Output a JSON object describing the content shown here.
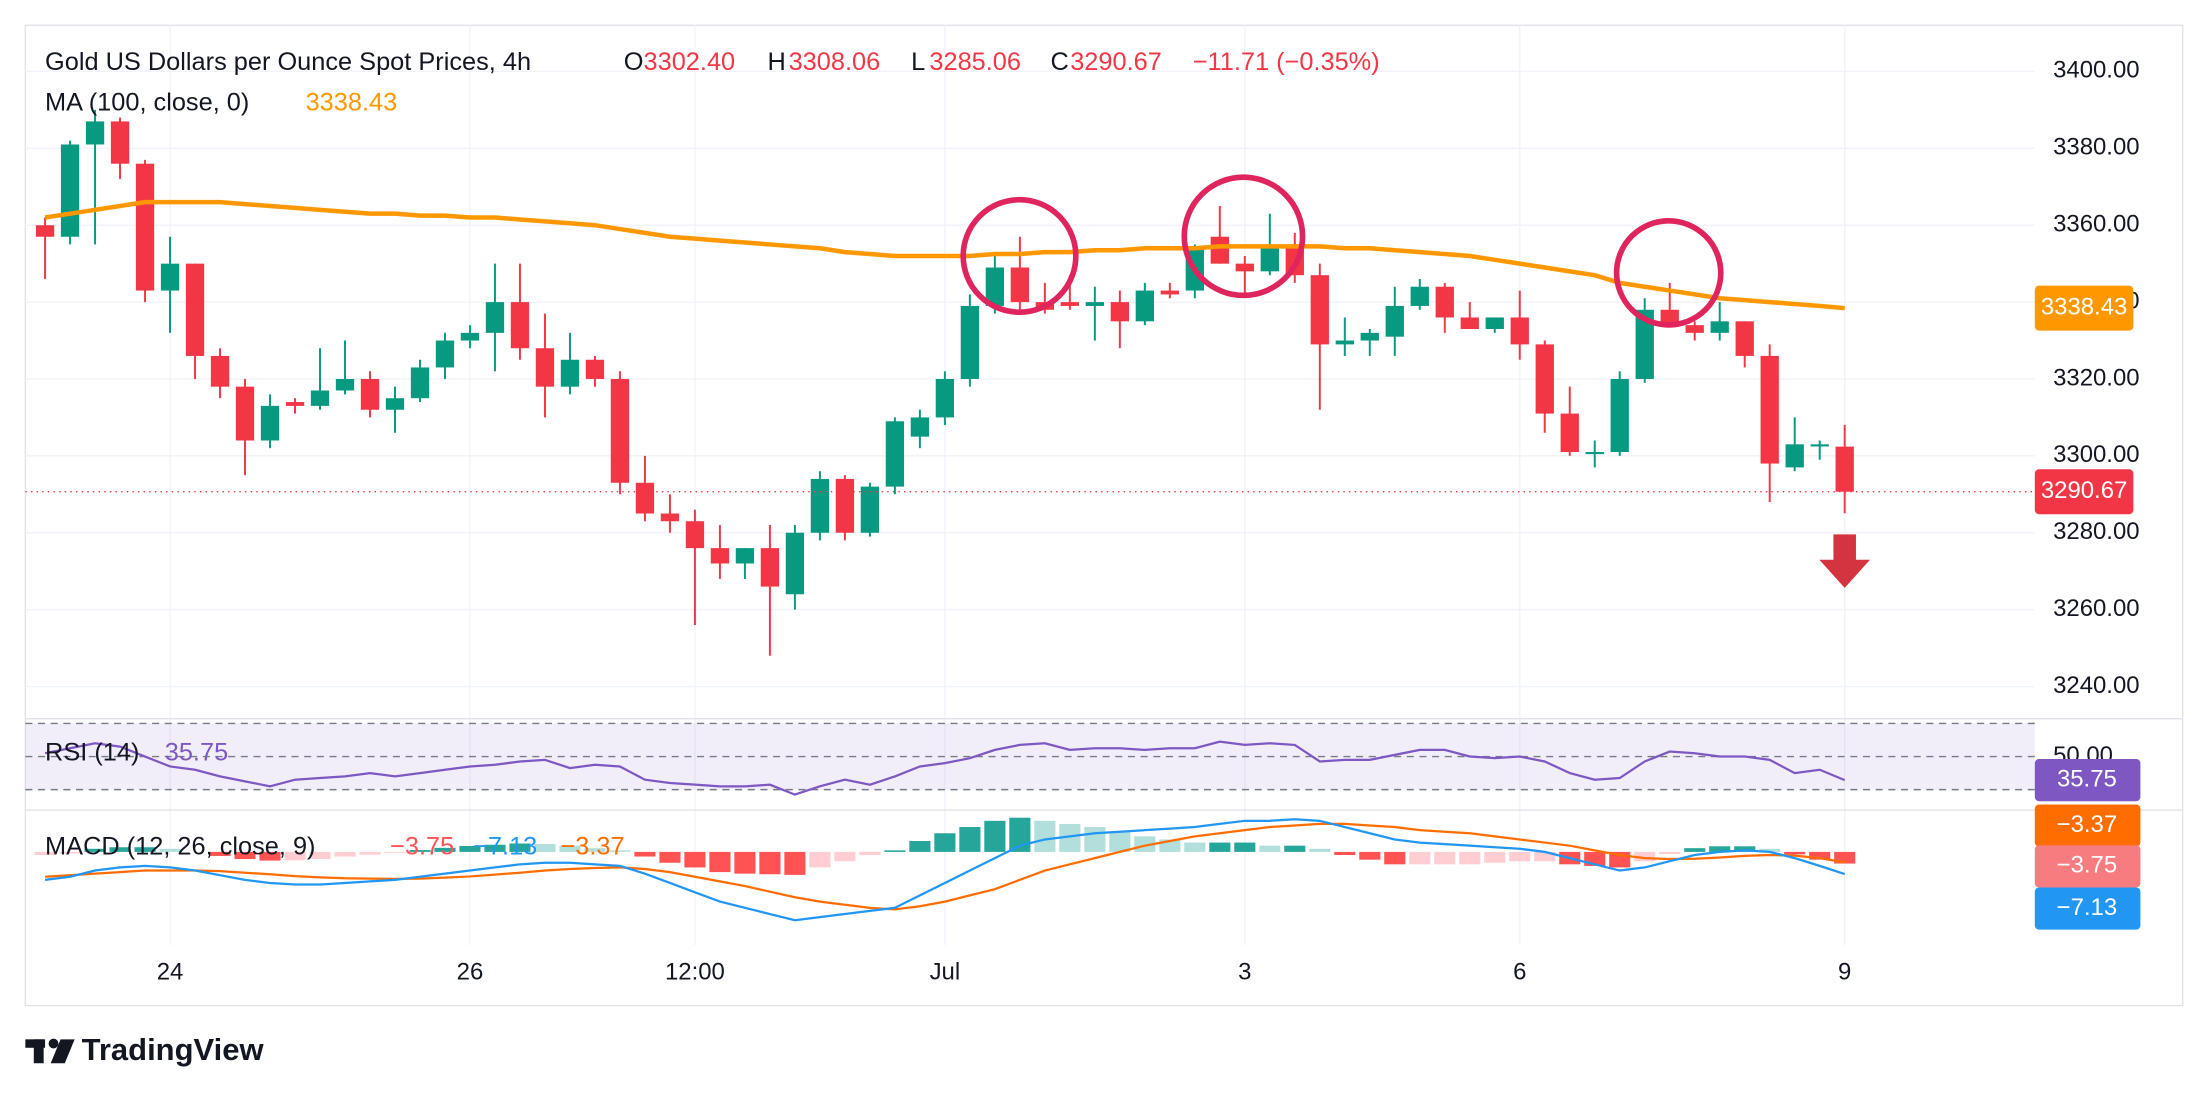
{
  "chart_data": [
    {
      "type": "candlestick",
      "title": "Gold US Dollars per Ounce Spot Prices, 4h",
      "header": {
        "open_label": "O",
        "open": "3302.40",
        "high_label": "H",
        "high": "3308.06",
        "low_label": "L",
        "low": "3285.06",
        "close_label": "C",
        "change": "−11.71 (−0.35%)"
      },
      "categories": [
        null,
        null,
        null,
        null,
        null,
        "24",
        null,
        null,
        null,
        null,
        null,
        null,
        null,
        null,
        null,
        null,
        null,
        "26",
        null,
        null,
        null,
        null,
        null,
        null,
        null,
        null,
        "12:00",
        null,
        null,
        null,
        null,
        null,
        null,
        null,
        null,
        null,
        "Jul",
        null,
        null,
        null,
        null,
        null,
        null,
        null,
        null,
        null,
        null,
        null,
        "3",
        null,
        null,
        null,
        null,
        null,
        null,
        null,
        null,
        null,
        null,
        "6",
        null,
        null,
        null,
        null,
        null,
        null,
        null,
        null,
        null,
        null,
        null,
        null,
        "9"
      ],
      "open": [
        3360,
        3357,
        3381,
        3387,
        3376,
        3343,
        3350,
        3326,
        3318,
        3304,
        3314,
        3313,
        3317,
        3320,
        3312,
        3315,
        3323,
        3330,
        3332,
        3340,
        3328,
        3318,
        3325,
        3320,
        3293,
        3285,
        3283,
        3276,
        3272,
        3276,
        3264,
        3280,
        3294,
        3280,
        3292,
        3305,
        3310,
        3320,
        3339,
        3349,
        3340,
        3340,
        3339,
        3340,
        3335,
        3343,
        3343,
        3357,
        3350,
        3348,
        3354,
        3347,
        3329,
        3330,
        3331,
        3339,
        3344,
        3336,
        3333,
        3336,
        3329,
        3311,
        3301,
        3301,
        3320,
        3338,
        3334,
        3332,
        3335,
        3326,
        3297,
        3303,
        3302.4
      ],
      "high": [
        3362,
        3382,
        3390,
        3388,
        3377,
        3357,
        3350,
        3328,
        3320,
        3316,
        3315,
        3328,
        3330,
        3322,
        3318,
        3325,
        3332,
        3334,
        3350,
        3350,
        3337,
        3332,
        3326,
        3322,
        3300,
        3290,
        3286,
        3282,
        3276,
        3282,
        3282,
        3296,
        3295,
        3293,
        3310,
        3312,
        3322,
        3342,
        3352,
        3357,
        3345,
        3347,
        3344,
        3343,
        3345,
        3345,
        3355,
        3365,
        3352,
        3363,
        3358,
        3350,
        3336,
        3333,
        3344,
        3346,
        3345,
        3340,
        3336,
        3343,
        3330,
        3318,
        3304,
        3322,
        3341,
        3345,
        3335,
        3340,
        3335,
        3329,
        3310,
        3304,
        3308.06
      ],
      "low": [
        3346,
        3355,
        3355,
        3372,
        3340,
        3332,
        3320,
        3315,
        3295,
        3302,
        3311,
        3312,
        3316,
        3310,
        3306,
        3314,
        3320,
        3328,
        3322,
        3325,
        3310,
        3316,
        3318,
        3290,
        3283,
        3280,
        3256,
        3268,
        3268,
        3248,
        3260,
        3278,
        3278,
        3279,
        3290,
        3302,
        3308,
        3318,
        3337,
        3338,
        3337,
        3338,
        3330,
        3328,
        3334,
        3341,
        3341,
        3350,
        3342,
        3347,
        3345,
        3312,
        3326,
        3326,
        3326,
        3338,
        3332,
        3333,
        3332,
        3325,
        3306,
        3300,
        3297,
        3300,
        3319,
        3334,
        3330,
        3330,
        3323,
        3288,
        3296,
        3299,
        3285.06
      ],
      "close": [
        3357,
        3381,
        3387,
        3376,
        3343,
        3350,
        3326,
        3318,
        3304,
        3313,
        3313,
        3317,
        3320,
        3312,
        3315,
        3323,
        3330,
        3332,
        3340,
        3328,
        3318,
        3325,
        3320,
        3293,
        3285,
        3283,
        3276,
        3272,
        3276,
        3266,
        3280,
        3294,
        3280,
        3292,
        3309,
        3310,
        3320,
        3339,
        3349,
        3340,
        3338,
        3339,
        3340,
        3335,
        3343,
        3342,
        3354,
        3350,
        3348,
        3354,
        3347,
        3329,
        3330,
        3332,
        3339,
        3344,
        3336,
        3333,
        3336,
        3329,
        3311,
        3301,
        3301,
        3320,
        3338,
        3334,
        3332,
        3335,
        3326,
        3298,
        3303,
        3303,
        3290.67
      ],
      "up_color": "#089981",
      "down_color": "#f23645",
      "ma": {
        "name": "MA (100, close, 0)",
        "color": "#ff9800",
        "values": [
          3362,
          3363,
          3364,
          3365,
          3366,
          3366,
          3366,
          3366,
          3365.5,
          3365,
          3364.5,
          3364,
          3363.5,
          3363,
          3363,
          3362.5,
          3362.5,
          3362,
          3362,
          3361.5,
          3361,
          3360.5,
          3360,
          3359,
          3358,
          3357,
          3356.5,
          3356,
          3355.5,
          3355,
          3354.5,
          3354,
          3353,
          3352.5,
          3352,
          3352,
          3352,
          3352,
          3352.5,
          3352.5,
          3353,
          3353,
          3353.5,
          3353.5,
          3354,
          3354,
          3354,
          3354.5,
          3354.5,
          3354.5,
          3354.5,
          3354.5,
          3354,
          3354,
          3353.5,
          3353,
          3352.5,
          3352,
          3351,
          3350,
          3349,
          3348,
          3347,
          3345,
          3344,
          3343,
          3342,
          3341,
          3340.5,
          3340,
          3339.5,
          3339,
          3338.43
        ]
      },
      "ylim": [
        3232,
        3412
      ],
      "yticks": [
        {
          "value": 3240,
          "label": "3240.00"
        },
        {
          "value": 3260,
          "label": "3260.00"
        },
        {
          "value": 3280,
          "label": "3280.00"
        },
        {
          "value": 3300,
          "label": "3300.00"
        },
        {
          "value": 3320,
          "label": "3320.00"
        },
        {
          "value": 3340,
          "label": "3340.00"
        },
        {
          "value": 3360,
          "label": "3360.00"
        },
        {
          "value": 3380,
          "label": "3380.00"
        },
        {
          "value": 3400,
          "label": "3400.00"
        }
      ],
      "grid": true
    },
    {
      "type": "line",
      "series": [
        {
          "name": "RSI (14)",
          "color": "#7e57c2",
          "values": [
            52,
            55,
            58,
            56,
            50,
            44,
            42,
            38,
            35,
            32,
            36,
            37,
            38,
            40,
            38,
            40,
            42,
            44,
            45,
            47,
            48,
            43,
            45,
            44,
            36,
            34,
            33,
            32,
            32,
            33,
            27,
            32,
            36,
            33,
            38,
            44,
            46,
            49,
            54,
            57,
            58,
            54,
            55,
            55,
            54,
            55,
            55,
            59,
            57,
            58,
            57,
            47,
            48,
            48,
            51,
            54,
            54,
            50,
            49,
            50,
            47,
            40,
            36,
            37,
            47,
            53,
            52,
            50,
            50,
            48,
            40,
            42,
            35.75
          ]
        }
      ],
      "ylim": [
        18.5,
        72
      ],
      "yticks": [
        {
          "value": 50,
          "label": "50.00"
        }
      ],
      "levels": [
        70,
        50,
        30
      ]
    },
    {
      "type": "macd",
      "name": "MACD (12, 26, close, 9)",
      "histogram": {
        "value_label": "−3.75",
        "colors": [
          "#26a69a",
          "#b2dfdb",
          "#ff5252",
          "#ffcdd2"
        ],
        "values": [
          -1,
          -0.5,
          1,
          1.5,
          1.5,
          1,
          0,
          -1.3,
          -2.3,
          -2.8,
          -2.7,
          -2.3,
          -1.5,
          -0.9,
          -0.3,
          0.6,
          1.3,
          1.9,
          2.3,
          2.7,
          2.5,
          2,
          1.2,
          0.5,
          -1.5,
          -3.5,
          -5,
          -6.5,
          -7,
          -7.2,
          -7.4,
          -5,
          -3,
          -1,
          0.5,
          3.5,
          6,
          8,
          10,
          11,
          10,
          9,
          8,
          6.5,
          5,
          4,
          3,
          3,
          3,
          2,
          2,
          1,
          -1,
          -2.5,
          -4,
          -4,
          -4,
          -4,
          -3.5,
          -3,
          -3,
          -4,
          -4.5,
          -5,
          -3,
          -0.7,
          1.2,
          1.8,
          1.8,
          1,
          -0.8,
          -2.5,
          -3.75
        ]
      },
      "macd": {
        "value_label": "−7.13",
        "color": "#2196f3",
        "values": [
          -9,
          -8,
          -6,
          -5,
          -4.5,
          -5,
          -6,
          -7.5,
          -9,
          -10,
          -10.5,
          -10.5,
          -10,
          -9.5,
          -9,
          -8,
          -7,
          -6,
          -5,
          -4,
          -3.5,
          -3.5,
          -4,
          -4.5,
          -7,
          -10,
          -13,
          -16,
          -18,
          -20,
          -22,
          -21,
          -20,
          -19,
          -18,
          -14,
          -10,
          -6,
          -2,
          2,
          4,
          5,
          6,
          6.5,
          7,
          7.5,
          8,
          9,
          10,
          10,
          10.5,
          10,
          8,
          6,
          4,
          3,
          2.5,
          2,
          1.5,
          1,
          0,
          -2,
          -4,
          -6,
          -5,
          -3,
          -1,
          0,
          0.5,
          0,
          -2,
          -4.5,
          -7.13
        ]
      },
      "signal": {
        "value_label": "−3.37",
        "color": "#ff6d00",
        "values": [
          -8,
          -7.5,
          -7,
          -6.5,
          -6,
          -6,
          -6,
          -6.2,
          -6.7,
          -7.2,
          -7.8,
          -8.2,
          -8.5,
          -8.6,
          -8.7,
          -8.6,
          -8.3,
          -7.9,
          -7.3,
          -6.7,
          -6,
          -5.5,
          -5.2,
          -5,
          -5.5,
          -6.5,
          -8,
          -9.5,
          -11,
          -12.8,
          -14.6,
          -16,
          -17,
          -18,
          -18.5,
          -17.5,
          -16,
          -14,
          -12,
          -9,
          -6,
          -4,
          -2,
          0,
          2,
          3.5,
          5,
          6,
          7,
          8,
          8.5,
          9,
          9,
          8.5,
          8,
          7,
          6.5,
          6,
          5,
          4,
          3,
          2,
          0.5,
          -1,
          -2,
          -2.3,
          -2.2,
          -1.8,
          -1.3,
          -1,
          -1.2,
          -2,
          -3.37
        ]
      },
      "ylim": [
        -30,
        13
      ]
    }
  ],
  "footer": {
    "brand": "TradingView"
  }
}
